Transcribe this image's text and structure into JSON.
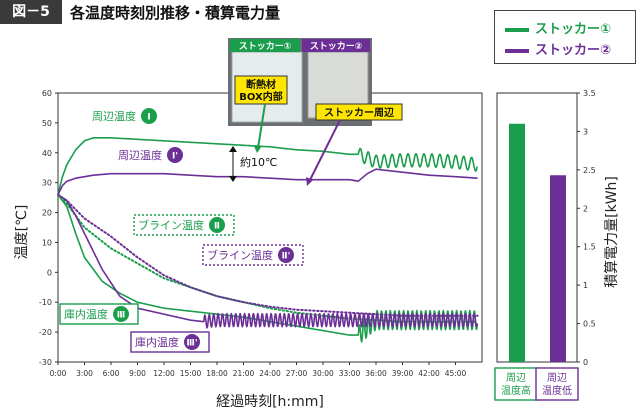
{
  "figure": {
    "tag": "図－5",
    "title": "各温度時刻別推移・積算電力量"
  },
  "legend": {
    "items": [
      {
        "label": "ストッカー①",
        "color": "#1a9e4b"
      },
      {
        "label": "ストッカー②",
        "color": "#6b2f96"
      }
    ]
  },
  "photo": {
    "label_1": "ストッカー①",
    "label_2": "ストッカー②",
    "callout_box": "断熱材\nBOX内部",
    "callout_ambient": "ストッカー周辺"
  },
  "annotations": {
    "diff": "約10℃",
    "series_labels": [
      {
        "text": "周辺温度",
        "numeral": "Ⅰ",
        "color": "#1a9e4b"
      },
      {
        "text": "周辺温度",
        "numeral": "Ⅰ'",
        "color": "#6b2f96"
      },
      {
        "text": "ブライン温度",
        "numeral": "Ⅱ",
        "color": "#1a9e4b"
      },
      {
        "text": "ブライン温度",
        "numeral": "Ⅱ'",
        "color": "#6b2f96"
      },
      {
        "text": "庫内温度",
        "numeral": "Ⅲ",
        "color": "#1a9e4b"
      },
      {
        "text": "庫内温度",
        "numeral": "Ⅲ'",
        "color": "#6b2f96"
      }
    ]
  },
  "chart_data": [
    {
      "type": "line",
      "xlabel": "経過時刻[h:mm]",
      "ylabel": "温度[℃]",
      "ylim": [
        -30,
        60
      ],
      "xlim": [
        0,
        48
      ],
      "x_ticks": [
        "0:00",
        "3:00",
        "6:00",
        "9:00",
        "12:00",
        "15:00",
        "18:00",
        "21:00",
        "24:00",
        "27:00",
        "30:00",
        "33:00",
        "36:00",
        "39:00",
        "42:00",
        "45:00"
      ],
      "y_ticks": [
        -30,
        -20,
        -10,
        0,
        10,
        20,
        30,
        40,
        50,
        60
      ],
      "grid": false,
      "series": [
        {
          "name": "周辺温度 Ⅰ",
          "color": "#1a9e4b",
          "style": "solid",
          "x": [
            0,
            0.5,
            1,
            2,
            3,
            4,
            6,
            9,
            12,
            15,
            18,
            21,
            24,
            27,
            30,
            33,
            34,
            36,
            39,
            42,
            45,
            47.5
          ],
          "y": [
            26,
            32,
            36,
            41,
            44,
            45,
            45,
            44.5,
            44,
            43.5,
            43,
            42.5,
            42,
            41,
            40.5,
            39.5,
            39.5,
            37,
            37.5,
            37.5,
            37,
            36
          ],
          "oscillation": {
            "from": 34,
            "amplitude": 2.2,
            "period": 0.9
          }
        },
        {
          "name": "周辺温度 Ⅰ'",
          "color": "#6b2f96",
          "style": "solid",
          "x": [
            0,
            0.5,
            1,
            2,
            4,
            6,
            9,
            12,
            15,
            18,
            21,
            24,
            27,
            30,
            33,
            34,
            35,
            36,
            39,
            42,
            45,
            47.5
          ],
          "y": [
            26,
            29,
            30.5,
            31.5,
            32.5,
            33,
            33,
            33,
            32.5,
            32,
            32,
            31.5,
            31,
            31,
            31,
            30.5,
            33,
            34.5,
            33.5,
            32.5,
            32,
            31.5
          ]
        },
        {
          "name": "ブライン温度 Ⅱ",
          "color": "#1a9e4b",
          "style": "dotted",
          "x": [
            0,
            1,
            3,
            6,
            9,
            12,
            15,
            18,
            21,
            24,
            27,
            30,
            33,
            36,
            39,
            42,
            45,
            47.5
          ],
          "y": [
            26,
            23,
            15,
            8,
            3,
            -2,
            -5,
            -8,
            -10,
            -12,
            -13.5,
            -14.5,
            -15.5,
            -16,
            -16.5,
            -16.5,
            -16.5,
            -16.5
          ]
        },
        {
          "name": "ブライン温度 Ⅱ'",
          "color": "#6b2f96",
          "style": "dotted",
          "x": [
            0,
            1,
            3,
            6,
            9,
            12,
            15,
            18,
            21,
            24,
            27,
            30,
            33,
            36,
            39,
            42,
            45,
            47.5
          ],
          "y": [
            26,
            24,
            18,
            12,
            5,
            -1,
            -5,
            -8,
            -10,
            -11.5,
            -12.5,
            -13,
            -13.5,
            -14,
            -14.5,
            -14.5,
            -14.5,
            -14.5
          ]
        },
        {
          "name": "庫内温度 Ⅲ",
          "color": "#1a9e4b",
          "style": "solid",
          "x": [
            0,
            1,
            2,
            3,
            5,
            7,
            9,
            12,
            15,
            18,
            21,
            24,
            27,
            30,
            33,
            34,
            36,
            39,
            42,
            45,
            47.5
          ],
          "y": [
            26,
            22,
            13,
            5,
            -3,
            -7,
            -10,
            -12,
            -13,
            -14,
            -15,
            -16.5,
            -18,
            -19.5,
            -21,
            -21,
            -16,
            -16,
            -16,
            -16,
            -16
          ],
          "oscillation": {
            "from": 34,
            "amplitude": 3.2,
            "period": 0.5
          }
        },
        {
          "name": "庫内温度 Ⅲ'",
          "color": "#6b2f96",
          "style": "solid",
          "x": [
            0,
            1,
            2,
            3,
            5,
            7,
            9,
            12,
            15,
            16.5,
            18,
            21,
            24,
            27,
            30,
            33,
            36,
            39,
            42,
            45,
            47.5
          ],
          "y": [
            26,
            24,
            19,
            13,
            1,
            -8,
            -12,
            -14,
            -16,
            -16.5,
            -16,
            -16,
            -16,
            -16,
            -16,
            -16,
            -16,
            -16,
            -16,
            -16,
            -16
          ],
          "oscillation": {
            "from": 16.5,
            "amplitude": 2.2,
            "period": 0.5
          }
        }
      ]
    },
    {
      "type": "bar",
      "ylabel": "積算電力量[kWh]",
      "ylim": [
        0,
        3.5
      ],
      "y_ticks": [
        0,
        0.5,
        1,
        1.5,
        2,
        2.5,
        3,
        3.5
      ],
      "categories": [
        "周辺\n温度高",
        "周辺\n温度低"
      ],
      "values": [
        3.1,
        2.43
      ],
      "colors": [
        "#1a9e4b",
        "#6b2f96"
      ]
    }
  ]
}
